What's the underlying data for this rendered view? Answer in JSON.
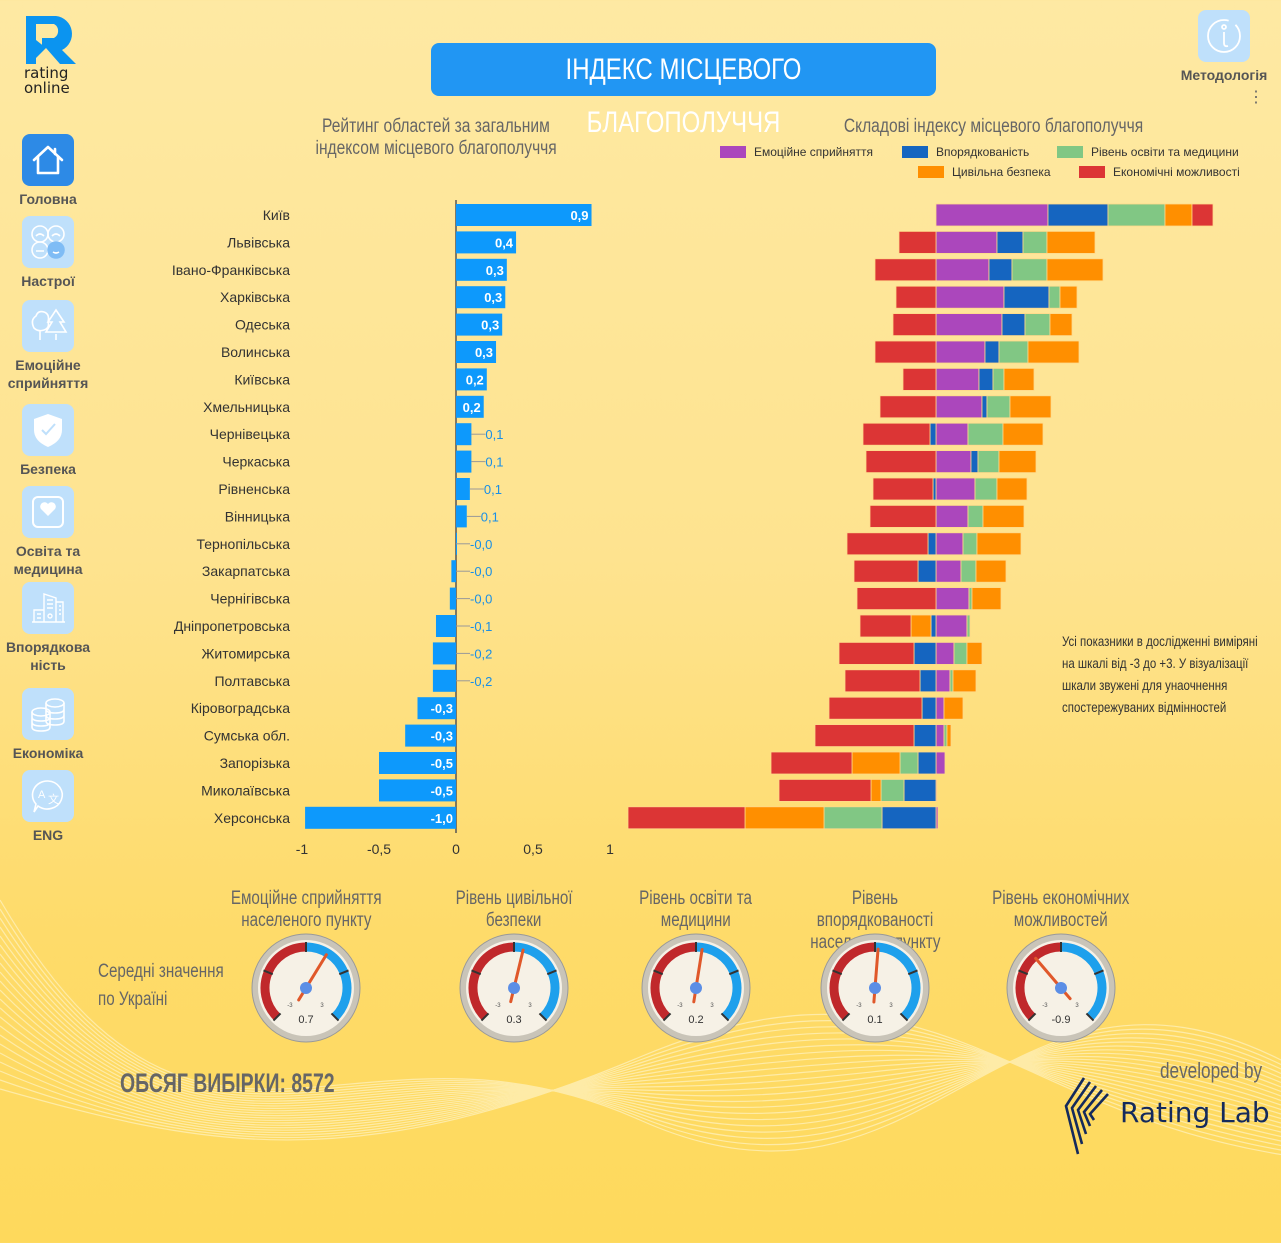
{
  "brand": {
    "logo_line1": "rating",
    "logo_line2": "online"
  },
  "header": {
    "title": "ІНДЕКС МІСЦЕВОГО БЛАГОПОЛУЧЧЯ",
    "methodology": "Методологія"
  },
  "sidebar": {
    "items": [
      {
        "label": "Головна",
        "icon": "home-icon"
      },
      {
        "label": "Настрої",
        "icon": "moods-icon"
      },
      {
        "label": "Емоційне сприйняття",
        "icon": "trees-icon"
      },
      {
        "label": "Безпека",
        "icon": "shield-icon"
      },
      {
        "label": "Освіта та медицина",
        "icon": "heart-icon"
      },
      {
        "label": "Впорядкова ність",
        "icon": "buildings-icon"
      },
      {
        "label": "Економіка",
        "icon": "coins-icon"
      },
      {
        "label": "ENG",
        "icon": "translate-icon"
      }
    ]
  },
  "colors": {
    "bar": "#0d99fc",
    "emotion": "#ab47bc",
    "order": "#1565c0",
    "education": "#81c784",
    "safety": "#ff8f00",
    "economy": "#dc3535"
  },
  "chart_data": [
    {
      "type": "bar",
      "title": "Рейтинг областей за загальним індексом місцевого благополуччя",
      "title_line1": "Рейтинг областей за загальним",
      "title_line2": "індексом місцевого благополуччя",
      "orientation": "horizontal",
      "xlim": [
        -1,
        1
      ],
      "xticks": [
        "-1",
        "-0,5",
        "0",
        "0,5",
        "1"
      ],
      "categories": [
        "Київ",
        "Львівська",
        "Івано-Франківська",
        "Харківська",
        "Одеська",
        "Волинська",
        "Київська",
        "Хмельницька",
        "Чернівецька",
        "Черкаська",
        "Рівненська",
        "Вінницька",
        "Тернопільська",
        "Закарпатська",
        "Чернігівська",
        "Дніпропетровська",
        "Житомирська",
        "Полтавська",
        "Кіровоградська",
        "Сумська обл.",
        "Запорізька",
        "Миколаївська",
        "Херсонська"
      ],
      "values": [
        0.88,
        0.39,
        0.33,
        0.32,
        0.3,
        0.26,
        0.2,
        0.18,
        0.1,
        0.1,
        0.09,
        0.07,
        0.0,
        -0.03,
        -0.04,
        -0.13,
        -0.15,
        -0.15,
        -0.25,
        -0.33,
        -0.5,
        -0.5,
        -0.98
      ],
      "labels": [
        "0,9",
        "0,4",
        "0,3",
        "0,3",
        "0,3",
        "0,3",
        "0,2",
        "0,2",
        "0,1",
        "0,1",
        "0,1",
        "0,1",
        "-0,0",
        "-0,0",
        "-0,0",
        "-0,1",
        "-0,2",
        "-0,2",
        "-0,3",
        "-0,3",
        "-0,5",
        "-0,5",
        "-1,0"
      ]
    },
    {
      "type": "bar",
      "stacked": "diverging",
      "title": "Складові індексу місцевого благополуччя",
      "legend": [
        "Емоційне сприйняття",
        "Впорядкованість",
        "Рівень освіти та медицини",
        "Цивільна безпека",
        "Економічні можливості"
      ],
      "legend_position": "top",
      "series": [
        {
          "name": "Емоційне сприйняття",
          "values": [
            1.12,
            0.61,
            0.53,
            0.68,
            0.66,
            0.49,
            0.43,
            0.46,
            0.32,
            0.35,
            0.39,
            0.32,
            0.27,
            0.25,
            0.33,
            0.31,
            0.18,
            0.14,
            0.08,
            0.08,
            0.09,
            0.01,
            0.02
          ]
        },
        {
          "name": "Впорядкованість",
          "values": [
            0.6,
            0.26,
            0.23,
            0.45,
            0.23,
            0.14,
            0.14,
            0.05,
            -0.06,
            0.07,
            -0.03,
            0.0,
            -0.08,
            -0.18,
            0.0,
            -0.05,
            -0.22,
            -0.16,
            -0.14,
            -0.22,
            -0.18,
            -0.32,
            -0.54
          ]
        },
        {
          "name": "Рівень освіти та медицини",
          "values": [
            0.57,
            0.24,
            0.35,
            0.11,
            0.25,
            0.29,
            0.11,
            0.23,
            0.35,
            0.21,
            0.22,
            0.15,
            0.14,
            0.15,
            0.03,
            0.03,
            0.13,
            0.03,
            0.0,
            0.03,
            -0.18,
            -0.23,
            -0.58
          ]
        },
        {
          "name": "Цивільна безпека",
          "values": [
            0.27,
            0.48,
            0.56,
            0.17,
            0.22,
            0.51,
            0.3,
            0.41,
            0.4,
            0.37,
            0.3,
            0.41,
            0.44,
            0.3,
            0.29,
            -0.2,
            0.15,
            0.23,
            0.19,
            0.04,
            -0.48,
            -0.1,
            -0.79
          ]
        },
        {
          "name": "Економічні можливості",
          "values": [
            0.21,
            -0.37,
            -0.61,
            -0.4,
            -0.43,
            -0.61,
            -0.33,
            -0.56,
            -0.67,
            -0.7,
            -0.6,
            -0.66,
            -0.81,
            -0.64,
            -0.79,
            -0.51,
            -0.75,
            -0.75,
            -0.93,
            -0.99,
            -0.81,
            -0.92,
            -1.17
          ]
        }
      ]
    },
    {
      "type": "gauge",
      "title": "Середні значення по Україні",
      "range": [
        -3,
        3
      ],
      "min_label": "-3",
      "max_label": "3",
      "gauges": [
        {
          "title_line1": "Емоційне сприйняття",
          "title_line2": "населеного пункту",
          "value": 0.7,
          "label": "0.7"
        },
        {
          "title_line1": "Рівень цивільної",
          "title_line2": "безпеки",
          "value": 0.3,
          "label": "0.3"
        },
        {
          "title_line1": "Рівень освіти та",
          "title_line2": "медицини",
          "value": 0.2,
          "label": "0.2"
        },
        {
          "title_line1": "Рівень впорядкованості",
          "title_line2": "населеного пункту",
          "value": 0.1,
          "label": "0.1"
        },
        {
          "title_line1": "Рівень економічних",
          "title_line2": "можливостей",
          "value": -0.9,
          "label": "-0.9"
        }
      ]
    }
  ],
  "averages": {
    "line1": "Середні значення",
    "line2": "по Україні"
  },
  "note": {
    "lines": [
      "Усі показники в дослідженні виміряні",
      "на шкалі від -3 до +3. У візуалізації",
      "шкали звужені для унаочнення",
      "спостережуваних відмінностей"
    ]
  },
  "sample": {
    "label": "ОБСЯГ ВИБІРКИ: 8572"
  },
  "footer": {
    "developed_by": "developed by",
    "company": "Rating Lab"
  }
}
